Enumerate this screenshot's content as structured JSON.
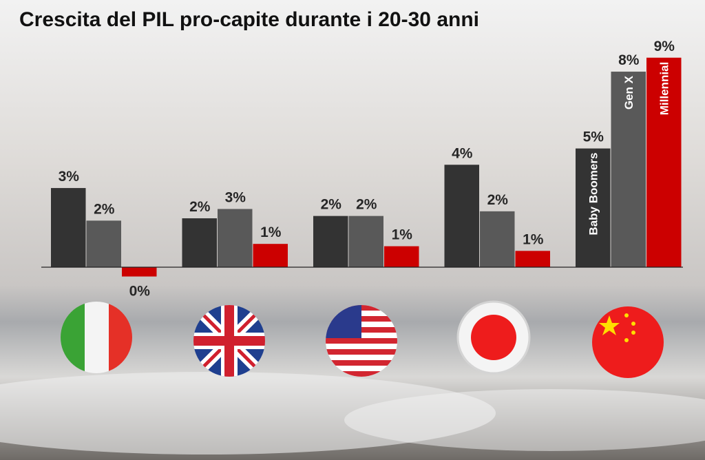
{
  "chart_data": {
    "type": "bar",
    "title": "Crescita del PIL pro-capite durante i 20-30 anni",
    "categories": [
      null,
      null,
      null,
      null,
      null
    ],
    "series": [
      {
        "name": "Baby Boomers",
        "color": "#333333",
        "values": [
          3.4,
          2.1,
          2.2,
          4.4,
          5.1
        ],
        "value_labels": [
          "3%",
          "2%",
          "2%",
          "4%",
          "5%"
        ]
      },
      {
        "name": "Gen X",
        "color": "#595959",
        "values": [
          2.0,
          2.5,
          2.2,
          2.4,
          8.4
        ],
        "value_labels": [
          "2%",
          "3%",
          "2%",
          "2%",
          "8%"
        ]
      },
      {
        "name": "Millennial",
        "color": "#cc0000",
        "values": [
          -0.4,
          1.0,
          0.9,
          0.7,
          9.0
        ],
        "value_labels": [
          "0%",
          "1%",
          "1%",
          "1%",
          "9%"
        ]
      }
    ],
    "ylim": [
      -1,
      9.2
    ]
  }
}
